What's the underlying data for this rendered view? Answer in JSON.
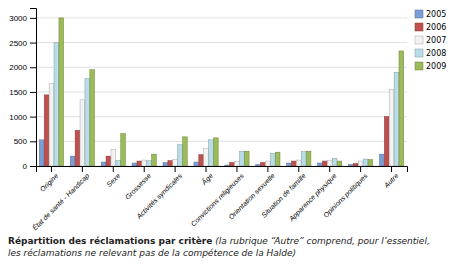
{
  "chart_data": {
    "type": "bar",
    "title": "Répartition des réclamations par critère",
    "subtitle": "(la rubrique “Autre” comprend, pour l’essentiel, les réclamations ne relevant pas de la compétence de la Halde)",
    "categories": [
      "Origine",
      "État de santé - Handicap",
      "Sexe",
      "Grossesse",
      "Activités syndicales",
      "Âge",
      "Convictions religieuses",
      "Orientation sexuelle",
      "Situation de famille",
      "Apparence physique",
      "Opinions politiques",
      "Autre"
    ],
    "series": [
      {
        "name": "2005",
        "color": "#7b9fd4",
        "values": [
          530,
          200,
          80,
          60,
          70,
          80,
          20,
          30,
          60,
          60,
          30,
          240
        ]
      },
      {
        "name": "2006",
        "color": "#c0504d",
        "values": [
          1440,
          720,
          200,
          100,
          110,
          230,
          70,
          70,
          100,
          100,
          50,
          1000
        ]
      },
      {
        "name": "2007",
        "color": "#f2f2f2",
        "values": [
          1670,
          1340,
          340,
          120,
          130,
          350,
          90,
          100,
          120,
          110,
          100,
          1550
        ]
      },
      {
        "name": "2008",
        "color": "#b8dce8",
        "values": [
          2500,
          1770,
          110,
          110,
          430,
          530,
          300,
          250,
          290,
          150,
          140,
          1900
        ]
      },
      {
        "name": "2009",
        "color": "#9bbb59",
        "values": [
          3000,
          1950,
          660,
          240,
          590,
          570,
          300,
          280,
          300,
          100,
          130,
          2330
        ]
      }
    ],
    "ylim": [
      0,
      3200
    ],
    "yticks": [
      0,
      500,
      1000,
      1500,
      2000,
      2500,
      3000
    ],
    "grid": true,
    "legend": "right"
  }
}
